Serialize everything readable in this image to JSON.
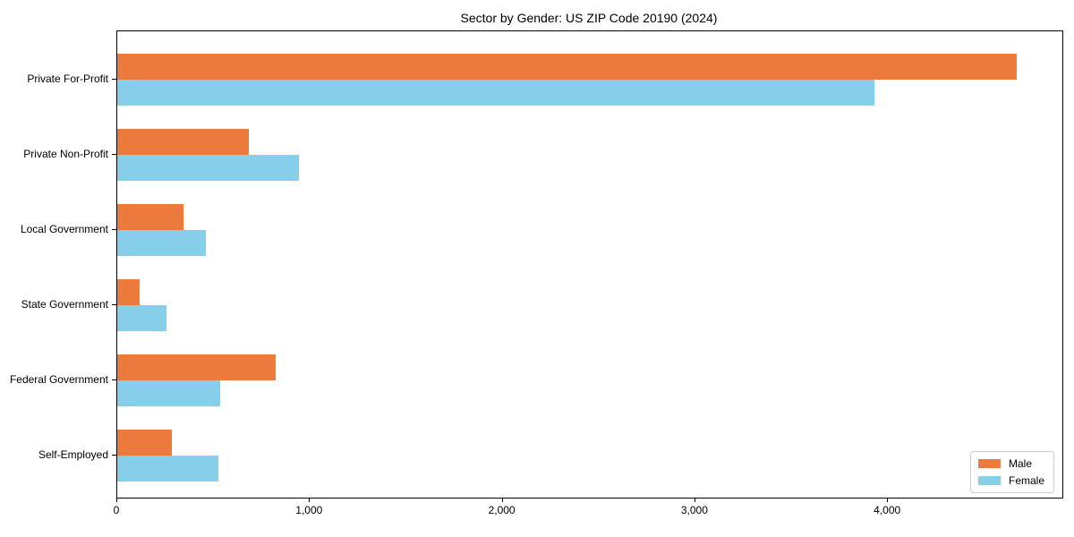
{
  "chart_data": {
    "type": "bar",
    "orientation": "horizontal",
    "title": "Sector by Gender: US ZIP Code 20190 (2024)",
    "xlabel": "",
    "ylabel": "",
    "grid": false,
    "legend_position": "lower right",
    "categories": [
      "Private For-Profit",
      "Private Non-Profit",
      "Local Government",
      "State Government",
      "Federal Government",
      "Self-Employed"
    ],
    "series": [
      {
        "name": "Male",
        "color": "#eb7a3c",
        "values": [
          4670,
          685,
          345,
          115,
          820,
          285
        ]
      },
      {
        "name": "Female",
        "color": "#87ceeb",
        "values": [
          3930,
          945,
          460,
          255,
          535,
          525
        ]
      }
    ],
    "xlim": [
      0,
      4905
    ],
    "x_ticks": [
      {
        "value": 0,
        "label": "0"
      },
      {
        "value": 1000,
        "label": "1,000"
      },
      {
        "value": 2000,
        "label": "2,000"
      },
      {
        "value": 3000,
        "label": "3,000"
      },
      {
        "value": 4000,
        "label": "4,000"
      }
    ],
    "colors": {
      "spine": "#000000",
      "background": "#ffffff",
      "legend_border": "#cccccc"
    }
  }
}
